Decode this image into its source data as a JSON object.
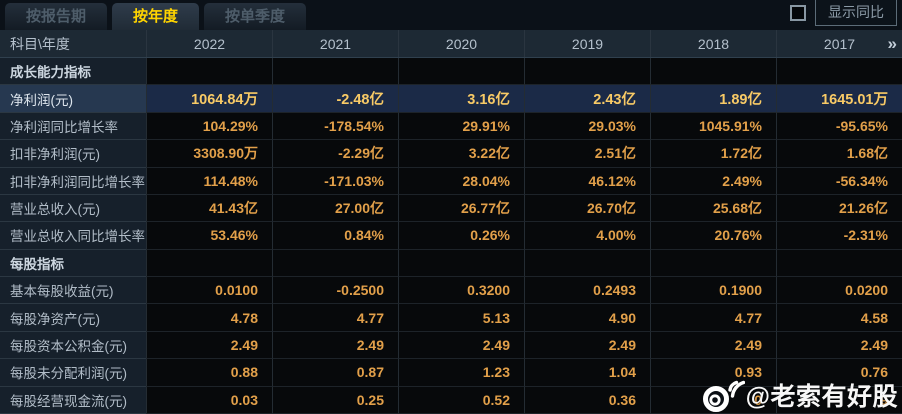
{
  "tabs": [
    {
      "label": "按报告期",
      "active": false
    },
    {
      "label": "按年度",
      "active": true
    },
    {
      "label": "按单季度",
      "active": false
    }
  ],
  "controls": {
    "show_yoy_label": "显示同比",
    "checkbox_checked": false
  },
  "table": {
    "corner_label": "科目\\年度",
    "years": [
      "2022",
      "2021",
      "2020",
      "2019",
      "2018",
      "2017"
    ],
    "more_icon": "»",
    "rows": [
      {
        "type": "section",
        "label": "成长能力指标",
        "values": [
          "",
          "",
          "",
          "",
          "",
          ""
        ]
      },
      {
        "type": "highlight",
        "label": "净利润(元)",
        "values": [
          "1064.84万",
          "-2.48亿",
          "3.16亿",
          "2.43亿",
          "1.89亿",
          "1645.01万"
        ]
      },
      {
        "type": "data",
        "label": "净利润同比增长率",
        "values": [
          "104.29%",
          "-178.54%",
          "29.91%",
          "29.03%",
          "1045.91%",
          "-95.65%"
        ]
      },
      {
        "type": "data",
        "label": "扣非净利润(元)",
        "values": [
          "3308.90万",
          "-2.29亿",
          "3.22亿",
          "2.51亿",
          "1.72亿",
          "1.68亿"
        ]
      },
      {
        "type": "data",
        "label": "扣非净利润同比增长率",
        "values": [
          "114.48%",
          "-171.03%",
          "28.04%",
          "46.12%",
          "2.49%",
          "-56.34%"
        ]
      },
      {
        "type": "data",
        "label": "营业总收入(元)",
        "values": [
          "41.43亿",
          "27.00亿",
          "26.77亿",
          "26.70亿",
          "25.68亿",
          "21.26亿"
        ]
      },
      {
        "type": "data",
        "label": "营业总收入同比增长率",
        "values": [
          "53.46%",
          "0.84%",
          "0.26%",
          "4.00%",
          "20.76%",
          "-2.31%"
        ]
      },
      {
        "type": "section",
        "label": "每股指标",
        "values": [
          "",
          "",
          "",
          "",
          "",
          ""
        ]
      },
      {
        "type": "data",
        "label": "基本每股收益(元)",
        "values": [
          "0.0100",
          "-0.2500",
          "0.3200",
          "0.2493",
          "0.1900",
          "0.0200"
        ]
      },
      {
        "type": "data",
        "label": "每股净资产(元)",
        "values": [
          "4.78",
          "4.77",
          "5.13",
          "4.90",
          "4.77",
          "4.58"
        ]
      },
      {
        "type": "data",
        "label": "每股资本公积金(元)",
        "values": [
          "2.49",
          "2.49",
          "2.49",
          "2.49",
          "2.49",
          "2.49"
        ]
      },
      {
        "type": "data",
        "label": "每股未分配利润(元)",
        "values": [
          "0.88",
          "0.87",
          "1.23",
          "1.04",
          "0.93",
          "0.76"
        ]
      },
      {
        "type": "data",
        "label": "每股经营现金流(元)",
        "values": [
          "0.03",
          "0.25",
          "0.52",
          "0.36",
          "0",
          "9"
        ]
      }
    ]
  },
  "watermark": {
    "text": "@老索有好股",
    "icon": "weibo-icon"
  },
  "colors": {
    "accent_gold": "#ffd400",
    "value_text": "#e2a04a",
    "highlight_value_text": "#f8ca66",
    "highlight_row_bg": "#1b2a47",
    "label_column_bg": "#16202b",
    "header_row_bg": "#1d2934",
    "watermark_text": "#ffffff"
  }
}
